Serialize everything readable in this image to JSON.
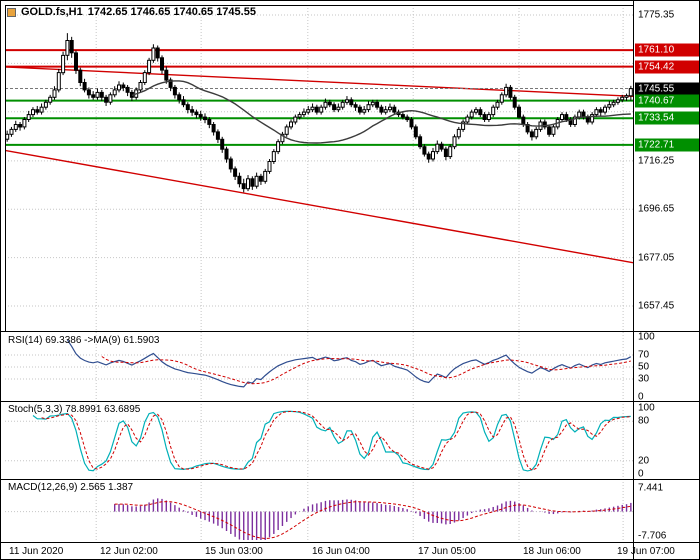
{
  "header": {
    "symbol_title": "GOLD.fs,H1",
    "ohlc_values": "1742.65 1746.65 1740.65 1745.55"
  },
  "colors": {
    "resistance": "#d10000",
    "support": "#008f00",
    "trendline": "#d10000",
    "grid": "#c6c6c6",
    "candle_border": "#000000",
    "up_candle": "#ffffff",
    "down_candle": "#000000",
    "ma": "#3c3c3c",
    "rsi_line": "#2f4d8f",
    "rsi_signal": "#d10000",
    "stoch_line": "#00b0b8",
    "stoch_signal": "#d10000",
    "macd_hist": "#7c2f9e",
    "macd_signal": "#d10000",
    "current_line": "#777777",
    "icon_color": "#e8a33d"
  },
  "chart_data": {
    "type": "candlestick-with-indicators",
    "symbol": "GOLD.fs",
    "timeframe": "H1",
    "x_labels": [
      "11 Jun 2020",
      "12 Jun 02:00",
      "15 Jun 03:00",
      "16 Jun 04:00",
      "17 Jun 05:00",
      "18 Jun 06:00",
      "19 Jun 07:00"
    ],
    "x_gridline_indices": [
      20.7,
      45.1,
      69.9,
      94.4,
      119.0,
      143.2
    ],
    "main": {
      "y_ticks": [
        {
          "v": 1775.35,
          "label": "1775.35"
        },
        {
          "v": 1716.25,
          "label": "1716.25"
        },
        {
          "v": 1696.65,
          "label": "1696.65"
        },
        {
          "v": 1677.05,
          "label": "1677.05"
        },
        {
          "v": 1657.45,
          "label": "1657.45"
        }
      ],
      "grid_levels": [
        1775.35,
        1755.75,
        1736.15,
        1716.25,
        1696.65,
        1677.05,
        1657.45
      ],
      "levels": {
        "resistance": [
          {
            "price": 1761.1,
            "label": "1761.10"
          },
          {
            "price": 1754.42,
            "label": "1754.42"
          }
        ],
        "support": [
          {
            "price": 1740.67,
            "label": "1740.67"
          },
          {
            "price": 1733.54,
            "label": "1733.54"
          },
          {
            "price": 1722.71,
            "label": "1722.71"
          }
        ],
        "current": {
          "price": 1745.55,
          "label": "1745.55"
        }
      },
      "trendlines": [
        {
          "from_price": 1754.3,
          "to_price": 1742.4
        },
        {
          "from_price": 1720.5,
          "to_price": 1675.0
        }
      ],
      "ma_period": 30,
      "candles": [
        [
          1725,
          1728.5,
          1724,
          1727
        ],
        [
          1727,
          1730,
          1726,
          1729
        ],
        [
          1729,
          1732.5,
          1728,
          1731
        ],
        [
          1731,
          1732,
          1728.5,
          1730
        ],
        [
          1730,
          1734,
          1729,
          1733
        ],
        [
          1733,
          1736.5,
          1732,
          1735
        ],
        [
          1735,
          1738,
          1734,
          1737
        ],
        [
          1737,
          1738.5,
          1735,
          1736
        ],
        [
          1736,
          1739.5,
          1735,
          1738
        ],
        [
          1738,
          1741,
          1737,
          1740
        ],
        [
          1740,
          1743,
          1739,
          1742
        ],
        [
          1742,
          1746.5,
          1741,
          1745
        ],
        [
          1745,
          1753.5,
          1744,
          1752
        ],
        [
          1752,
          1760.5,
          1751,
          1759
        ],
        [
          1759,
          1768,
          1757,
          1765
        ],
        [
          1765,
          1766.5,
          1758,
          1760
        ],
        [
          1760,
          1761,
          1751.5,
          1753
        ],
        [
          1753,
          1754,
          1746.5,
          1748
        ],
        [
          1748,
          1749.5,
          1744,
          1745
        ],
        [
          1745,
          1746,
          1741.5,
          1743
        ],
        [
          1743,
          1744.5,
          1741,
          1742
        ],
        [
          1742,
          1745.5,
          1741,
          1744
        ],
        [
          1744,
          1745,
          1740.5,
          1742
        ],
        [
          1742,
          1743,
          1738.5,
          1740
        ],
        [
          1740,
          1744,
          1739,
          1743
        ],
        [
          1743,
          1746.5,
          1742,
          1745
        ],
        [
          1745,
          1748.5,
          1744,
          1747
        ],
        [
          1747,
          1748,
          1744.5,
          1746
        ],
        [
          1746,
          1747,
          1742.5,
          1744
        ],
        [
          1744,
          1745,
          1740.5,
          1742
        ],
        [
          1742,
          1746,
          1741,
          1745
        ],
        [
          1745,
          1749,
          1744,
          1748
        ],
        [
          1748,
          1753,
          1747,
          1752
        ],
        [
          1752,
          1758,
          1751,
          1757
        ],
        [
          1757,
          1763.5,
          1756,
          1762
        ],
        [
          1762,
          1763,
          1756.5,
          1758
        ],
        [
          1758,
          1759,
          1751.5,
          1753
        ],
        [
          1753,
          1754.5,
          1747.5,
          1749
        ],
        [
          1749,
          1750,
          1744.5,
          1746
        ],
        [
          1746,
          1747,
          1741.5,
          1743
        ],
        [
          1743,
          1744,
          1739.5,
          1741
        ],
        [
          1741,
          1742.5,
          1738,
          1739
        ],
        [
          1739,
          1740,
          1735.5,
          1737
        ],
        [
          1737,
          1738.5,
          1734.5,
          1736
        ],
        [
          1736,
          1737,
          1733.5,
          1735
        ],
        [
          1735,
          1736.5,
          1732.5,
          1734
        ],
        [
          1734,
          1735.5,
          1731.5,
          1733
        ],
        [
          1733,
          1734,
          1729.5,
          1731
        ],
        [
          1731,
          1732,
          1726.5,
          1728
        ],
        [
          1728,
          1729,
          1723.5,
          1725
        ],
        [
          1725,
          1726,
          1719.5,
          1721
        ],
        [
          1721,
          1722,
          1715.5,
          1717
        ],
        [
          1717,
          1718,
          1711.5,
          1713
        ],
        [
          1713,
          1714,
          1708.5,
          1710
        ],
        [
          1710,
          1711.5,
          1705.5,
          1707
        ],
        [
          1707,
          1709,
          1703.5,
          1705
        ],
        [
          1705,
          1710.5,
          1704,
          1709
        ],
        [
          1709,
          1710,
          1704.5,
          1706
        ],
        [
          1706,
          1711.5,
          1705,
          1710
        ],
        [
          1710,
          1711,
          1706.5,
          1708
        ],
        [
          1708,
          1713,
          1707,
          1712
        ],
        [
          1712,
          1717,
          1711,
          1716
        ],
        [
          1716,
          1721,
          1715,
          1720
        ],
        [
          1720,
          1725,
          1719,
          1724
        ],
        [
          1724,
          1728,
          1723,
          1727
        ],
        [
          1727,
          1731,
          1726,
          1730
        ],
        [
          1730,
          1733,
          1729,
          1732
        ],
        [
          1732,
          1735,
          1731,
          1734
        ],
        [
          1734,
          1736,
          1733,
          1735
        ],
        [
          1735,
          1737.5,
          1734,
          1736
        ],
        [
          1736,
          1738.5,
          1735,
          1737
        ],
        [
          1737,
          1739.5,
          1736,
          1738
        ],
        [
          1738,
          1739,
          1735,
          1736
        ],
        [
          1736,
          1739,
          1735,
          1738
        ],
        [
          1738,
          1741.5,
          1737,
          1740
        ],
        [
          1740,
          1741,
          1738,
          1739
        ],
        [
          1739,
          1740,
          1736,
          1737
        ],
        [
          1737,
          1739.5,
          1736,
          1738
        ],
        [
          1738,
          1741,
          1737,
          1740
        ],
        [
          1740,
          1742.5,
          1739,
          1741
        ],
        [
          1741,
          1742,
          1738,
          1739
        ],
        [
          1739,
          1740,
          1736.5,
          1738
        ],
        [
          1738,
          1739,
          1735,
          1736
        ],
        [
          1736,
          1738.5,
          1735,
          1737
        ],
        [
          1737,
          1740.5,
          1736,
          1739
        ],
        [
          1739,
          1741,
          1738,
          1740
        ],
        [
          1740,
          1741,
          1737,
          1738
        ],
        [
          1738,
          1739,
          1735,
          1736
        ],
        [
          1736,
          1738.5,
          1735,
          1737
        ],
        [
          1737,
          1739.5,
          1736,
          1738
        ],
        [
          1738,
          1739,
          1735,
          1736
        ],
        [
          1736,
          1737,
          1734,
          1735
        ],
        [
          1735,
          1736,
          1733,
          1734
        ],
        [
          1734,
          1735,
          1732,
          1733
        ],
        [
          1733,
          1734,
          1729,
          1730
        ],
        [
          1730,
          1731,
          1725,
          1726
        ],
        [
          1726,
          1727,
          1721,
          1722
        ],
        [
          1722,
          1723,
          1718,
          1719
        ],
        [
          1719,
          1720,
          1715.5,
          1717
        ],
        [
          1717,
          1721.5,
          1716,
          1720
        ],
        [
          1720,
          1724.5,
          1719,
          1723
        ],
        [
          1723,
          1724,
          1720,
          1721
        ],
        [
          1721,
          1722,
          1716.5,
          1718
        ],
        [
          1718,
          1723,
          1717,
          1722
        ],
        [
          1722,
          1727,
          1721,
          1726
        ],
        [
          1726,
          1730,
          1725,
          1729
        ],
        [
          1729,
          1733,
          1728,
          1732
        ],
        [
          1732,
          1735,
          1731,
          1734
        ],
        [
          1734,
          1737,
          1733,
          1736
        ],
        [
          1736,
          1738,
          1735,
          1737
        ],
        [
          1737,
          1738,
          1734,
          1735
        ],
        [
          1735,
          1736,
          1732,
          1733
        ],
        [
          1733,
          1736,
          1732,
          1735
        ],
        [
          1735,
          1739,
          1734,
          1738
        ],
        [
          1738,
          1741,
          1737,
          1740
        ],
        [
          1740,
          1744,
          1739,
          1743
        ],
        [
          1743,
          1747.5,
          1742,
          1746
        ],
        [
          1746,
          1747,
          1741,
          1742
        ],
        [
          1742,
          1743,
          1737,
          1738
        ],
        [
          1738,
          1739,
          1733.5,
          1734
        ],
        [
          1734,
          1735,
          1730,
          1731
        ],
        [
          1731,
          1732,
          1727,
          1728
        ],
        [
          1728,
          1729,
          1724.5,
          1726
        ],
        [
          1726,
          1730,
          1725,
          1729
        ],
        [
          1729,
          1733,
          1728,
          1732
        ],
        [
          1732,
          1733,
          1729,
          1730
        ],
        [
          1730,
          1731,
          1726,
          1727
        ],
        [
          1727,
          1731,
          1726,
          1730
        ],
        [
          1730,
          1734,
          1729,
          1733
        ],
        [
          1733,
          1736,
          1732,
          1735
        ],
        [
          1735,
          1736,
          1732,
          1733
        ],
        [
          1733,
          1734,
          1730,
          1731
        ],
        [
          1731,
          1735,
          1730,
          1734
        ],
        [
          1734,
          1737,
          1733,
          1736
        ],
        [
          1736,
          1737,
          1733,
          1734
        ],
        [
          1734,
          1735,
          1731,
          1732
        ],
        [
          1732,
          1736,
          1731,
          1735
        ],
        [
          1735,
          1738,
          1734,
          1737
        ],
        [
          1737,
          1738,
          1734.5,
          1736
        ],
        [
          1736,
          1739,
          1735,
          1738
        ],
        [
          1738,
          1740.5,
          1737,
          1739
        ],
        [
          1739,
          1741,
          1738,
          1740
        ],
        [
          1740,
          1742,
          1739,
          1741
        ],
        [
          1741,
          1743,
          1740,
          1742
        ],
        [
          1742,
          1743.5,
          1740.5,
          1742.65
        ],
        [
          1742.65,
          1746.65,
          1740.65,
          1745.55
        ]
      ]
    },
    "rsi": {
      "label": "RSI(14) 69.3386 ->MA(9) 61.5903",
      "period": 14,
      "ma_period": 9,
      "last": 69.3386,
      "ma_last": 61.5903,
      "scale": [
        {
          "v": 100,
          "label": "100"
        },
        {
          "v": 70,
          "label": "70"
        },
        {
          "v": 50,
          "label": "50"
        },
        {
          "v": 30,
          "label": "30"
        },
        {
          "v": 0,
          "label": "0"
        }
      ],
      "guides": [
        70,
        50,
        30
      ]
    },
    "stoch": {
      "label": "Stoch(5,3,3) 78.8991 63.6895",
      "k": 5,
      "slow": 3,
      "d": 3,
      "last_k": 78.8991,
      "last_d": 63.6895,
      "scale": [
        {
          "v": 100,
          "label": "100"
        },
        {
          "v": 80,
          "label": "80"
        },
        {
          "v": 20,
          "label": "20"
        },
        {
          "v": 0,
          "label": "0"
        }
      ],
      "guides": [
        80,
        20
      ]
    },
    "macd": {
      "label": "MACD(12,26,9) 2.565 1.387",
      "fast": 12,
      "slow": 26,
      "signal": 9,
      "last": 2.565,
      "last_signal": 1.387,
      "scale": [
        {
          "v": 7.441,
          "label": "7.441"
        },
        {
          "v": -7.706,
          "label": "-7.706"
        }
      ]
    }
  }
}
